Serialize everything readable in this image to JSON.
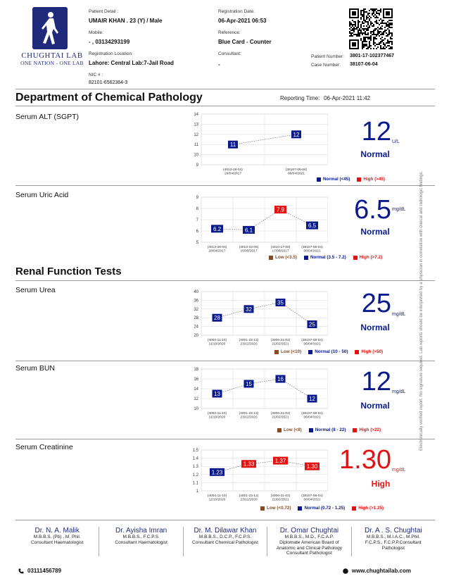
{
  "header": {
    "logo_name": "CHUGHTAI LAB",
    "logo_tag": "ONE NATION - ONE LAB",
    "patient_detail_label": "Patient Detail :",
    "patient_detail_value": "UMAIR KHAN .  23 (Y) / Male",
    "mobile_label": "Mobile:",
    "mobile_value": "- , 03134293199",
    "reg_location_label": "Registration Location:",
    "reg_location_value": "Lahore: Central Lab:7-Jail Road",
    "nic_label": "NIC # :",
    "nic_value": "82101-6562364-3",
    "reg_date_label": "Registration Date:",
    "reg_date_value": "06-Apr-2021 06:53",
    "reference_label": "Reference:",
    "reference_value": "Blue Card - Counter",
    "consultant_label": "Consultant:",
    "consultant_value": "-",
    "patient_number_label": "Patient Number:",
    "patient_number_value": "3801-17-102377467",
    "case_number_label": "Case Number:",
    "case_number_value": "38107-06-04"
  },
  "department": "Department of Chemical Pathology",
  "reporting_time_label": "Reporting Time:",
  "reporting_time_value": "06-Apr-2021 11:42",
  "renal_section": "Renal Function Tests",
  "colors": {
    "normal": "#0a1a8c",
    "high": "#e31212",
    "low": "#8b4a1e"
  },
  "tests": [
    {
      "name": "Serum ALT (SGPT)",
      "value": "12",
      "unit": "U/L",
      "status": "Normal",
      "legend": {
        "normal": "Normal (<45)",
        "high": "High (>45)"
      }
    },
    {
      "name": "Serum Uric Acid",
      "value": "6.5",
      "unit": "mg/dL",
      "status": "Normal",
      "legend": {
        "low": "Low (<3.5)",
        "normal": "Normal (3.5 - 7.2)",
        "high": "High (>7.2)"
      }
    },
    {
      "name": "Serum Urea",
      "value": "25",
      "unit": "mg/dL",
      "status": "Normal",
      "legend": {
        "low": "Low (<10)",
        "normal": "Normal (10 - 50)",
        "high": "High (>50)"
      }
    },
    {
      "name": "Serum BUN",
      "value": "12",
      "unit": "mg/dL",
      "status": "Normal",
      "legend": {
        "low": "Low (<8)",
        "normal": "Normal (8 - 22)",
        "high": "High (>22)"
      }
    },
    {
      "name": "Serum Creatinine",
      "value": "1.30",
      "unit": "mg/dL",
      "status": "High",
      "legend": {
        "low": "Low (<0.72)",
        "normal": "Normal (0.72 - 1.25)",
        "high": "High (>1.25)"
      }
    }
  ],
  "chart_data": [
    {
      "type": "line",
      "title": "Serum ALT (SGPT)",
      "ylim": [
        9,
        14
      ],
      "yticks": [
        9,
        10,
        11,
        12,
        13,
        14
      ],
      "x": [
        "(4013-28-04) 28/04/2017",
        "(38107-06-04) 06/04/2021"
      ],
      "values": [
        11,
        12
      ],
      "labels": [
        "11",
        "12"
      ],
      "status": [
        "normal",
        "normal"
      ]
    },
    {
      "type": "line",
      "title": "Serum Uric Acid",
      "ylim": [
        5,
        9
      ],
      "yticks": [
        5,
        6,
        7,
        8,
        9
      ],
      "x": [
        "(4013-28-04) 28/04/2017",
        "(4013-15-05) 15/05/2017",
        "(4010-17-08) 17/08/2017",
        "(38107-06-04) 06/04/2021"
      ],
      "values": [
        6.2,
        6.1,
        7.9,
        6.5
      ],
      "labels": [
        "6.2",
        "6.1",
        "7.9",
        "6.5"
      ],
      "status": [
        "normal",
        "normal",
        "high",
        "normal"
      ]
    },
    {
      "type": "line",
      "title": "Serum Urea",
      "ylim": [
        20,
        40
      ],
      "yticks": [
        20,
        24,
        28,
        32,
        36,
        40
      ],
      "x": [
        "(4004-11-10) 11/10/2020",
        "(4001-23-12) 23/12/2020",
        "(4006-21-02) 21/02/2021",
        "(38107-06-04) 06/04/2021"
      ],
      "values": [
        28,
        32,
        35,
        25
      ],
      "labels": [
        "28",
        "32",
        "35",
        "25"
      ],
      "status": [
        "normal",
        "normal",
        "normal",
        "normal"
      ]
    },
    {
      "type": "line",
      "title": "Serum BUN",
      "ylim": [
        10,
        18
      ],
      "yticks": [
        10,
        12,
        14,
        16,
        18
      ],
      "x": [
        "(4004-11-10) 11/10/2020",
        "(4001-23-12) 23/12/2020",
        "(4006-21-02) 21/02/2021",
        "(38107-06-04) 06/04/2021"
      ],
      "values": [
        13,
        15,
        16,
        12
      ],
      "labels": [
        "13",
        "15",
        "16",
        "12"
      ],
      "status": [
        "normal",
        "normal",
        "normal",
        "normal"
      ]
    },
    {
      "type": "line",
      "title": "Serum Creatinine",
      "ylim": [
        1,
        1.5
      ],
      "yticks": [
        1,
        1.1,
        1.2,
        1.3,
        1.4,
        1.5
      ],
      "x": [
        "(4004-11-10) 11/10/2020",
        "(4001-23-12) 23/12/2020",
        "(4006-21-02) 21/02/2021",
        "(38107-06-04) 06/04/2021"
      ],
      "values": [
        1.23,
        1.33,
        1.37,
        1.3
      ],
      "labels": [
        "1.23",
        "1.33",
        "1.37",
        "1.30"
      ],
      "status": [
        "normal",
        "high",
        "high",
        "high"
      ]
    }
  ],
  "side_note": "Electronically verified report. No signature required. Lab reports should be interpreted by a physician in correlation with clinical and radiologic findings.",
  "doctors": [
    {
      "name": "Dr. N. A. Malik",
      "lines": [
        "M.B.B.S. (Pb) , M. Phil.",
        "Consultant Haematologist"
      ]
    },
    {
      "name": "Dr. Ayisha Imran",
      "lines": [
        "M.B.B.S., F.C.P.S.",
        "Consultant Haematologist"
      ]
    },
    {
      "name": "Dr. M. Dilawar Khan",
      "lines": [
        "M.B.B.S., D.C.P., F.C.P.S.",
        "Consultant Chemical Pathologist"
      ]
    },
    {
      "name": "Dr. Omar Chughtai",
      "lines": [
        "M.B.B.S., M.D., F.C.A.P.",
        "Diplomate American Board of",
        "Anatomic and Clinical Pathology",
        "Consultant Pathologist"
      ]
    },
    {
      "name": "Dr. A . S. Chughtai",
      "lines": [
        "M.B.B.S., M.I.A.C., M.Phil.",
        "F.C.P.S., F.C.P.P.Consultant",
        "Pathologist"
      ]
    }
  ],
  "footer": {
    "phone": "03111456789",
    "website": "www.chughtailab.com"
  }
}
